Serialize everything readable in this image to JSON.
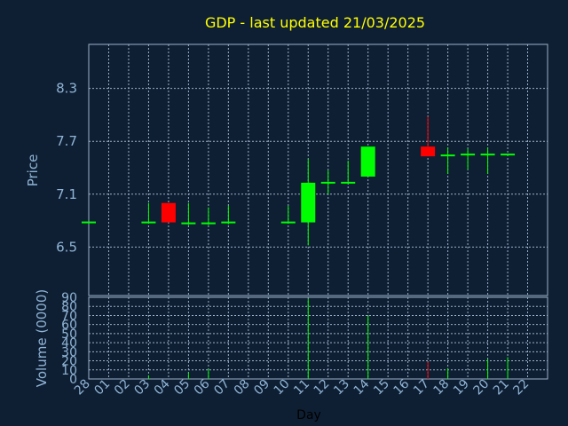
{
  "chart_data": {
    "type": "candlestick",
    "title": "GDP - last updated 21/03/2025",
    "xlabel": "Day",
    "ylabel_price": "Price",
    "ylabel_volume": "Volume (0000)",
    "price_ticks": [
      "8.3",
      "7.7",
      "7.1",
      "6.5"
    ],
    "price_tick_values": [
      8.3,
      7.7,
      7.1,
      6.5
    ],
    "price_ylim": [
      5.95,
      8.8
    ],
    "volume_ticks": [
      "90",
      "80",
      "70",
      "60",
      "50",
      "40",
      "30",
      "20",
      "10",
      "0"
    ],
    "volume_tick_values": [
      90,
      80,
      70,
      60,
      50,
      40,
      30,
      20,
      10,
      0
    ],
    "volume_ylim": [
      0,
      90
    ],
    "day_labels": [
      "28",
      "01",
      "02",
      "03",
      "04",
      "05",
      "06",
      "07",
      "08",
      "09",
      "10",
      "11",
      "12",
      "13",
      "14",
      "15",
      "16",
      "17",
      "18",
      "19",
      "20",
      "21",
      "22"
    ],
    "grid": true,
    "colors": {
      "background": "#0f1f33",
      "grid": "#9ab0c8",
      "up": "#00ff00",
      "down": "#ff0000",
      "title": "#ffff00",
      "tick": "#8fb4d6"
    },
    "candles": [
      {
        "idx": 0,
        "open": 6.78,
        "high": 6.78,
        "low": 6.78,
        "close": 6.78,
        "volume": 0,
        "dir": "up"
      },
      {
        "idx": 3,
        "open": 6.78,
        "high": 7.0,
        "low": 6.78,
        "close": 6.78,
        "volume": 4,
        "dir": "up"
      },
      {
        "idx": 4,
        "open": 6.78,
        "high": 7.0,
        "low": 6.78,
        "close": 7.0,
        "volume": 0,
        "dir": "down"
      },
      {
        "idx": 5,
        "open": 6.77,
        "high": 7.0,
        "low": 6.75,
        "close": 6.77,
        "volume": 7,
        "dir": "up"
      },
      {
        "idx": 6,
        "open": 6.77,
        "high": 6.95,
        "low": 6.75,
        "close": 6.77,
        "volume": 11,
        "dir": "up"
      },
      {
        "idx": 7,
        "open": 6.78,
        "high": 6.97,
        "low": 6.76,
        "close": 6.78,
        "volume": 0,
        "dir": "up"
      },
      {
        "idx": 10,
        "open": 6.78,
        "high": 6.97,
        "low": 6.78,
        "close": 6.78,
        "volume": 0,
        "dir": "up"
      },
      {
        "idx": 11,
        "open": 6.78,
        "high": 7.5,
        "low": 6.52,
        "close": 7.23,
        "volume": 88,
        "dir": "up"
      },
      {
        "idx": 12,
        "open": 7.23,
        "high": 7.37,
        "low": 7.1,
        "close": 7.23,
        "volume": 0,
        "dir": "up"
      },
      {
        "idx": 13,
        "open": 7.23,
        "high": 7.48,
        "low": 7.23,
        "close": 7.23,
        "volume": 0,
        "dir": "up"
      },
      {
        "idx": 14,
        "open": 7.3,
        "high": 7.64,
        "low": 7.3,
        "close": 7.64,
        "volume": 70,
        "dir": "up"
      },
      {
        "idx": 17,
        "open": 7.53,
        "high": 7.98,
        "low": 7.53,
        "close": 7.64,
        "volume": 19,
        "dir": "down"
      },
      {
        "idx": 18,
        "open": 7.54,
        "high": 7.63,
        "low": 7.33,
        "close": 7.54,
        "volume": 12,
        "dir": "up"
      },
      {
        "idx": 19,
        "open": 7.55,
        "high": 7.62,
        "low": 7.38,
        "close": 7.55,
        "volume": 0,
        "dir": "up"
      },
      {
        "idx": 20,
        "open": 7.55,
        "high": 7.63,
        "low": 7.33,
        "close": 7.55,
        "volume": 22,
        "dir": "up"
      },
      {
        "idx": 21,
        "open": 7.55,
        "high": 7.55,
        "low": 7.55,
        "close": 7.55,
        "volume": 24,
        "dir": "up"
      }
    ]
  }
}
